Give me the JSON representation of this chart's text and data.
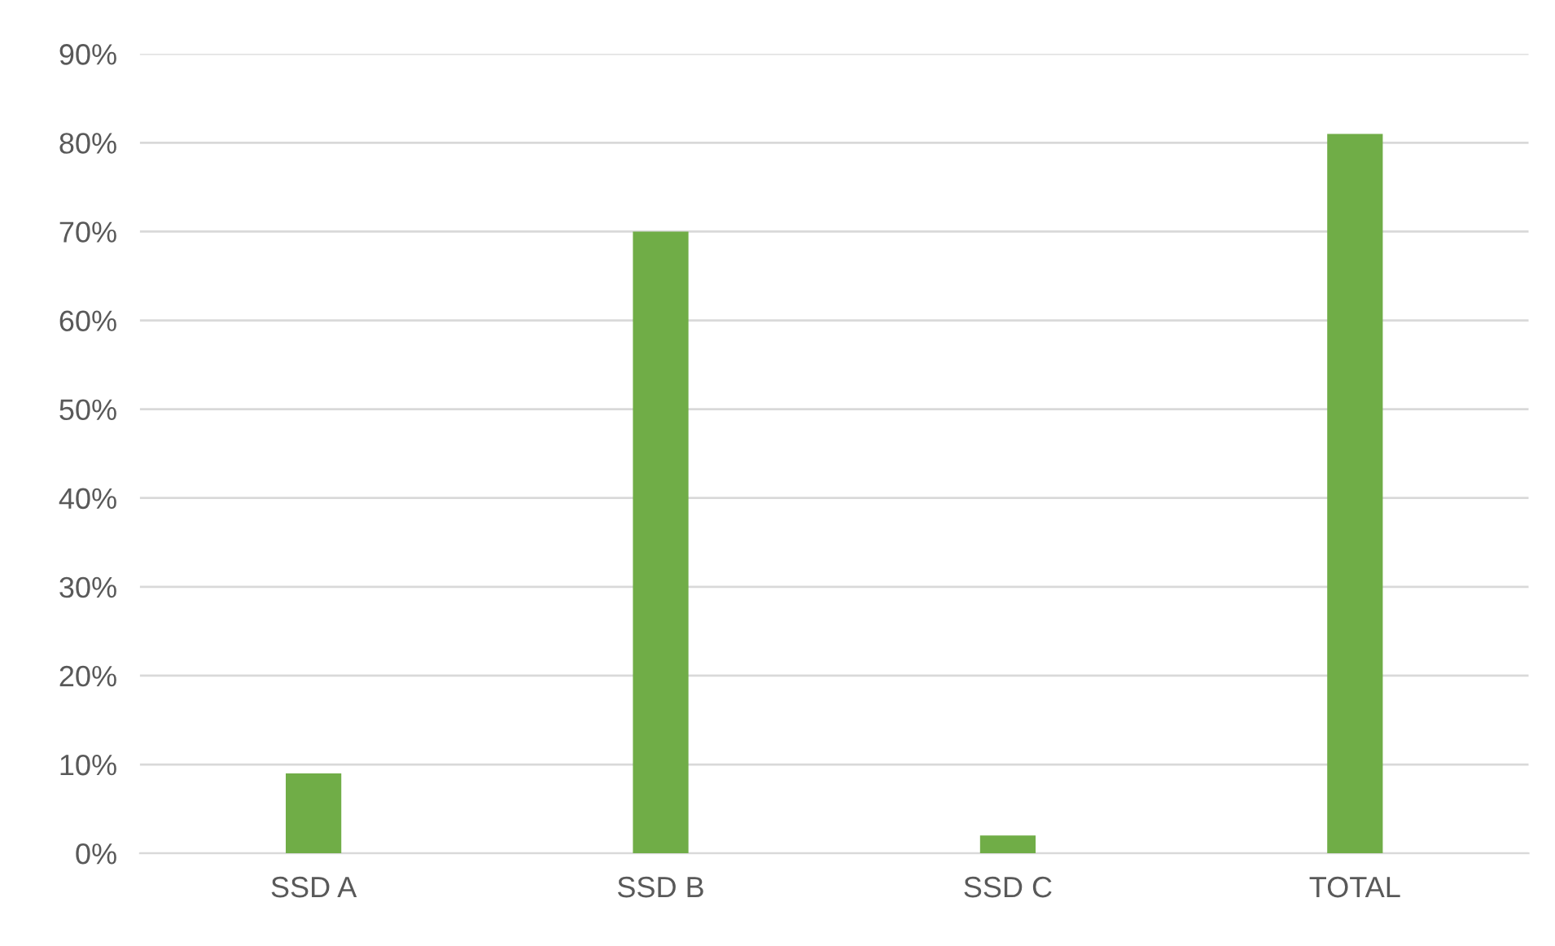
{
  "chart_data": {
    "type": "bar",
    "categories": [
      "SSD A",
      "SSD B",
      "SSD C",
      "TOTAL"
    ],
    "values": [
      9,
      70,
      2,
      81
    ],
    "color": "#70ad47",
    "ylim": [
      0,
      90
    ],
    "yticks": [
      {
        "value": 0,
        "label": "0%"
      },
      {
        "value": 10,
        "label": "10%"
      },
      {
        "value": 20,
        "label": "20%"
      },
      {
        "value": 30,
        "label": "30%"
      },
      {
        "value": 40,
        "label": "40%"
      },
      {
        "value": 50,
        "label": "50%"
      },
      {
        "value": 60,
        "label": "60%"
      },
      {
        "value": 70,
        "label": "70%"
      },
      {
        "value": 80,
        "label": "80%"
      },
      {
        "value": 90,
        "label": "90%"
      }
    ],
    "grid": "y"
  }
}
